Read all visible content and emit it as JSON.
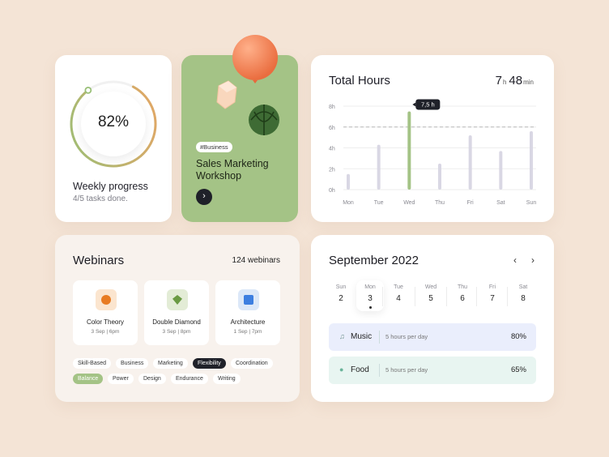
{
  "colors": {
    "accent_green": "#a4c386",
    "progress_orange": "#e6a868",
    "music_bg": "#eaeefc",
    "food_bg": "#e8f5f1"
  },
  "progress": {
    "value": 0.82,
    "percent_label": "82%",
    "title": "Weekly progress",
    "subtitle": "4/5 tasks done."
  },
  "workshop": {
    "tag": "#Business",
    "title": "Sales Marketing Workshop",
    "action_icon": "chevron-right-icon"
  },
  "hours": {
    "title": "Total Hours",
    "total_hours": "7",
    "hours_unit": "h",
    "total_minutes": "48",
    "minutes_unit": "min",
    "tooltip": "7,5 h"
  },
  "chart_data": {
    "type": "bar",
    "categories": [
      "Mon",
      "Tue",
      "Wed",
      "Thu",
      "Fri",
      "Sat",
      "Sun"
    ],
    "values": [
      1.5,
      4.3,
      7.5,
      2.5,
      5.2,
      3.7,
      5.6
    ],
    "highlight_index": 2,
    "y_ticks": [
      "0h",
      "2h",
      "4h",
      "6h",
      "8h"
    ],
    "ylim": [
      0,
      8
    ],
    "reference_line": 6,
    "grid": true
  },
  "webinars": {
    "title": "Webinars",
    "count": "124 webinars",
    "items": [
      {
        "name": "Color Theory",
        "date": "3 Sep",
        "time": "6pm",
        "icon": "orange-sphere-icon",
        "bg": "#fbe5cf",
        "fg": "#e87b22"
      },
      {
        "name": "Double Diamond",
        "date": "3 Sep",
        "time": "8pm",
        "icon": "diamond-icon",
        "bg": "#e3ecd6",
        "fg": "#6a9a43"
      },
      {
        "name": "Architecture",
        "date": "1 Sep",
        "time": "7pm",
        "icon": "cube-icon",
        "bg": "#dce8f8",
        "fg": "#3d7fe0"
      }
    ],
    "tags_row1": [
      "Skill-Based",
      "Business",
      "Marketing",
      "Flexibility",
      "Coordination"
    ],
    "tags_row2": [
      "Balance",
      "Power",
      "Design",
      "Endurance",
      "Writing"
    ],
    "selected_tag_dark": "Flexibility",
    "selected_tag_green": "Balance"
  },
  "calendar": {
    "title": "September 2022",
    "prev_icon": "chevron-left-icon",
    "next_icon": "chevron-right-icon",
    "days": [
      {
        "name": "Sun",
        "date": "2"
      },
      {
        "name": "Mon",
        "date": "3"
      },
      {
        "name": "Tue",
        "date": "4"
      },
      {
        "name": "Wed",
        "date": "5"
      },
      {
        "name": "Thu",
        "date": "6"
      },
      {
        "name": "Fri",
        "date": "7"
      },
      {
        "name": "Sat",
        "date": "8"
      }
    ],
    "selected_index": 1,
    "activities": [
      {
        "name": "Music",
        "hours": "5 hours per day",
        "percent": "80%",
        "icon": "music-note-icon"
      },
      {
        "name": "Food",
        "hours": "5 hours per day",
        "percent": "65%",
        "icon": "apple-icon"
      }
    ]
  }
}
